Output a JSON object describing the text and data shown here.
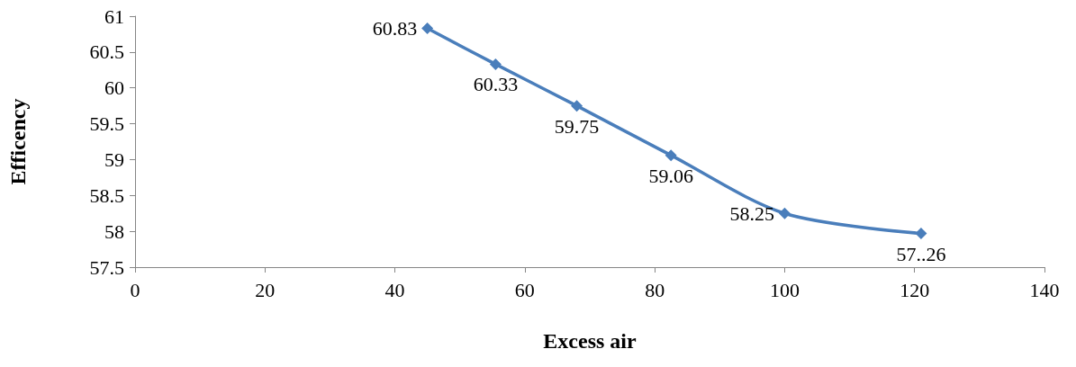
{
  "chart_data": {
    "type": "line",
    "xlabel": "Excess air",
    "ylabel": "Efficency",
    "x": [
      45,
      55.5,
      68,
      82.5,
      100,
      121
    ],
    "series": [
      {
        "color": "#4a7ebb",
        "values": [
          60.83,
          60.33,
          59.75,
          59.06,
          58.25,
          57.97
        ],
        "value_labels": [
          "60.83",
          "60.33",
          "59.75",
          "59.06",
          "58.25",
          "57..26"
        ]
      }
    ],
    "xlim": [
      0,
      140
    ],
    "xticks": [
      0,
      20,
      40,
      60,
      80,
      100,
      120,
      140
    ],
    "ylim": [
      57.5,
      61
    ],
    "yticks": [
      57.5,
      58,
      58.5,
      59,
      59.5,
      60,
      60.5,
      61
    ],
    "grid": false,
    "marker": "diamond",
    "line_style": "solid"
  }
}
